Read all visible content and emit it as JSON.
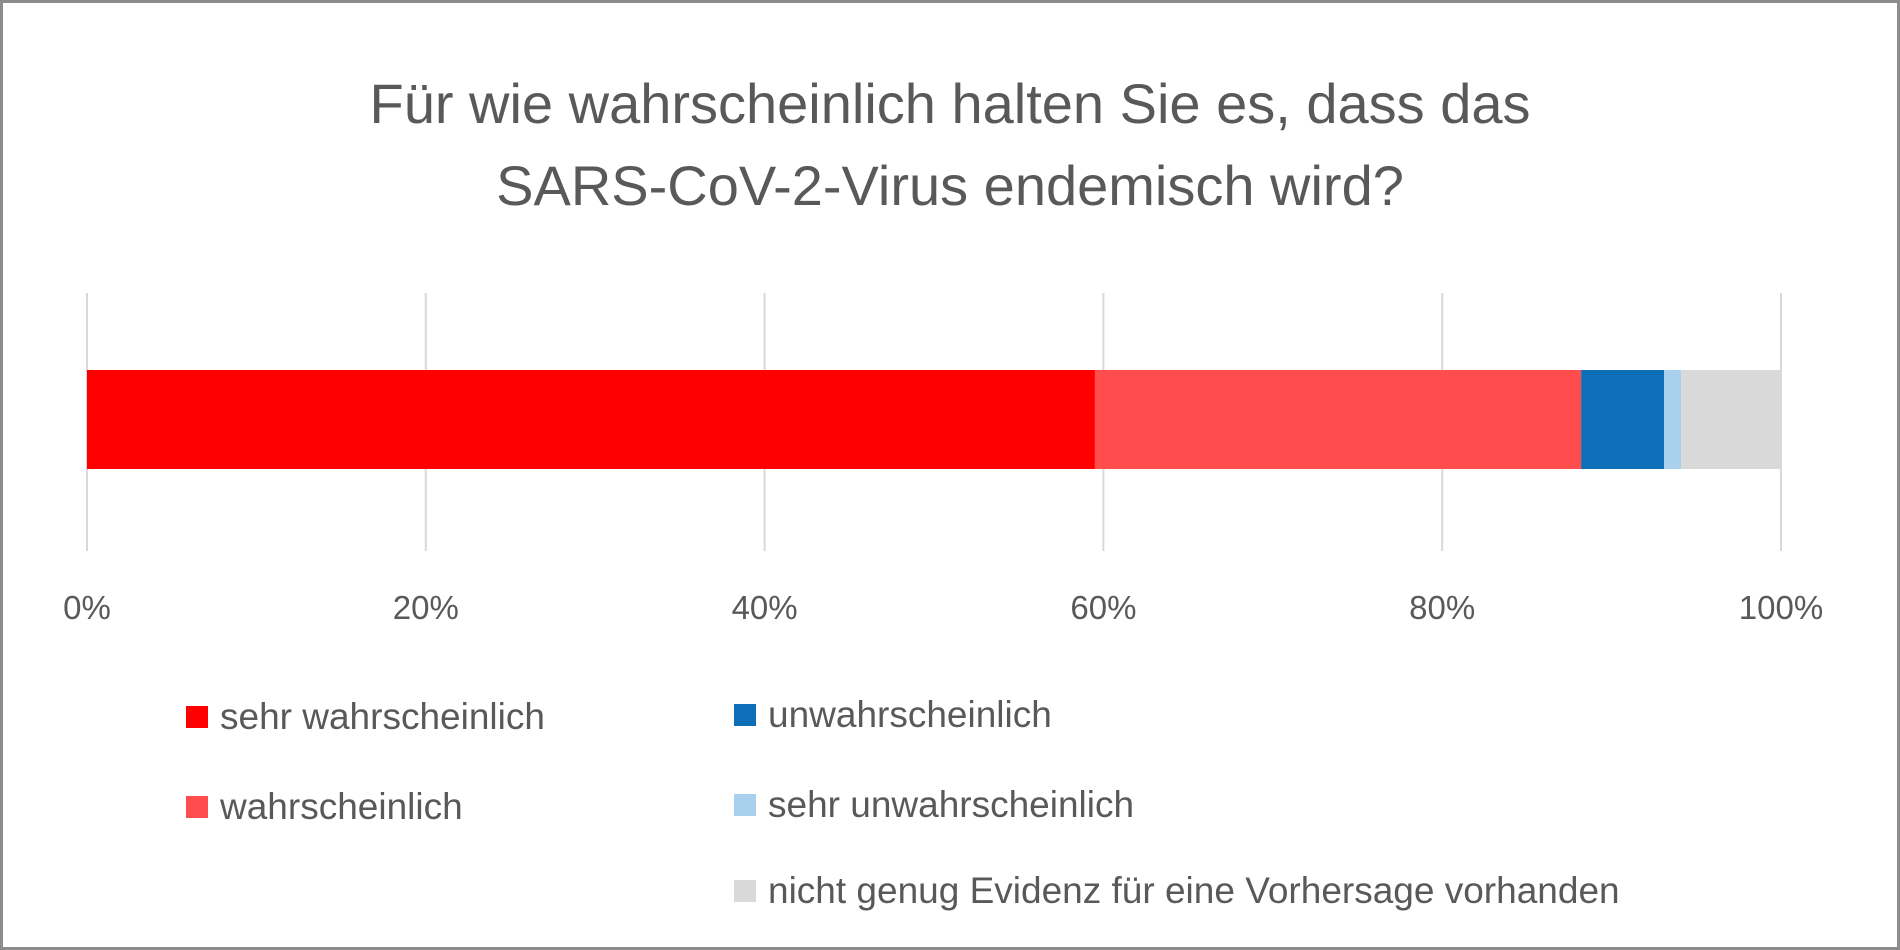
{
  "chart_data": {
    "type": "bar",
    "orientation": "horizontal",
    "stacked": true,
    "title_lines": [
      "Für wie wahrscheinlich halten Sie es, dass das",
      "SARS-CoV-2-Virus endemisch wird?"
    ],
    "xlim": [
      0,
      100
    ],
    "x_ticks": [
      0,
      20,
      40,
      60,
      80,
      100
    ],
    "x_tick_labels": [
      "0%",
      "20%",
      "40%",
      "60%",
      "80%",
      "100%"
    ],
    "grid": true,
    "legend_position": "bottom",
    "series": [
      {
        "name": "sehr wahrscheinlich",
        "value": 59.5,
        "color": "#ff0000"
      },
      {
        "name": "wahrscheinlich",
        "value": 28.7,
        "color": "#ff4d4d"
      },
      {
        "name": "unwahrscheinlich",
        "value": 4.9,
        "color": "#0f6eb8"
      },
      {
        "name": "sehr unwahrscheinlich",
        "value": 1.0,
        "color": "#a9d1ee"
      },
      {
        "name": "nicht genug Evidenz für eine Vorhersage vorhanden",
        "value": 5.9,
        "color": "#d9d9d9"
      }
    ]
  }
}
